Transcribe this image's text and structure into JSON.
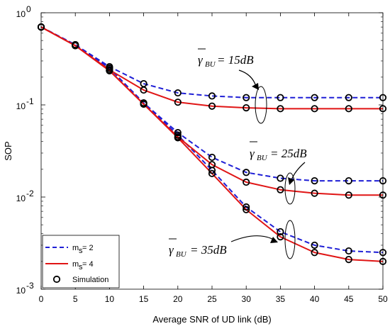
{
  "chart_data": {
    "type": "line",
    "title": "",
    "xlabel": "Average SNR of UD link (dB)",
    "ylabel": "SOP",
    "x_ticks": [
      "0",
      "5",
      "10",
      "15",
      "20",
      "25",
      "30",
      "35",
      "40",
      "45",
      "50"
    ],
    "y_scale": "log",
    "y_ticks": [
      {
        "base": "10",
        "exp": "0"
      },
      {
        "base": "10",
        "exp": "-1"
      },
      {
        "base": "10",
        "exp": "-2"
      },
      {
        "base": "10",
        "exp": "-3"
      }
    ],
    "xlim": [
      0,
      50
    ],
    "ylim": [
      0.001,
      1
    ],
    "grid": false,
    "legend_position": "bottom-left",
    "legend": [
      {
        "label_main": "m",
        "label_sub": "s",
        "label_rest": " = 2",
        "style": "dashed",
        "color": "#1f1fd6"
      },
      {
        "label_main": "m",
        "label_sub": "s",
        "label_rest": " = 4",
        "style": "solid",
        "color": "#e01515"
      },
      {
        "label_main": "Simulation",
        "label_sub": "",
        "label_rest": "",
        "style": "marker",
        "color": "#000000"
      }
    ],
    "x": [
      0,
      5,
      10,
      15,
      20,
      25,
      30,
      35,
      40,
      45,
      50
    ],
    "series": [
      {
        "group": "15dB",
        "ms": 2,
        "style": "dashed",
        "color": "#1f1fd6",
        "values": [
          0.7,
          0.45,
          0.26,
          0.17,
          0.135,
          0.125,
          0.12,
          0.12,
          0.12,
          0.12,
          0.12
        ]
      },
      {
        "group": "15dB",
        "ms": 4,
        "style": "solid",
        "color": "#e01515",
        "values": [
          0.7,
          0.44,
          0.24,
          0.145,
          0.107,
          0.097,
          0.093,
          0.091,
          0.091,
          0.091,
          0.091
        ]
      },
      {
        "group": "25dB",
        "ms": 2,
        "style": "dashed",
        "color": "#1f1fd6",
        "values": [
          0.7,
          0.45,
          0.25,
          0.105,
          0.05,
          0.027,
          0.0185,
          0.016,
          0.015,
          0.015,
          0.015
        ]
      },
      {
        "group": "25dB",
        "ms": 4,
        "style": "solid",
        "color": "#e01515",
        "values": [
          0.7,
          0.44,
          0.235,
          0.102,
          0.045,
          0.0225,
          0.0145,
          0.012,
          0.011,
          0.0105,
          0.0105
        ]
      },
      {
        "group": "35dB",
        "ms": 2,
        "style": "dashed",
        "color": "#1f1fd6",
        "values": [
          0.7,
          0.45,
          0.25,
          0.105,
          0.047,
          0.0195,
          0.0078,
          0.0042,
          0.003,
          0.0026,
          0.0025
        ]
      },
      {
        "group": "35dB",
        "ms": 4,
        "style": "solid",
        "color": "#e01515",
        "values": [
          0.7,
          0.44,
          0.235,
          0.102,
          0.044,
          0.018,
          0.0073,
          0.0037,
          0.0025,
          0.0021,
          0.002
        ]
      }
    ],
    "annotations": [
      {
        "id": "15",
        "gamma": "γ",
        "sub": "BU",
        "text": " = 15dB"
      },
      {
        "id": "25",
        "gamma": "γ",
        "sub": "BU",
        "text": " = 25dB"
      },
      {
        "id": "35",
        "gamma": "γ",
        "sub": "BU",
        "text": " = 35dB"
      }
    ]
  }
}
